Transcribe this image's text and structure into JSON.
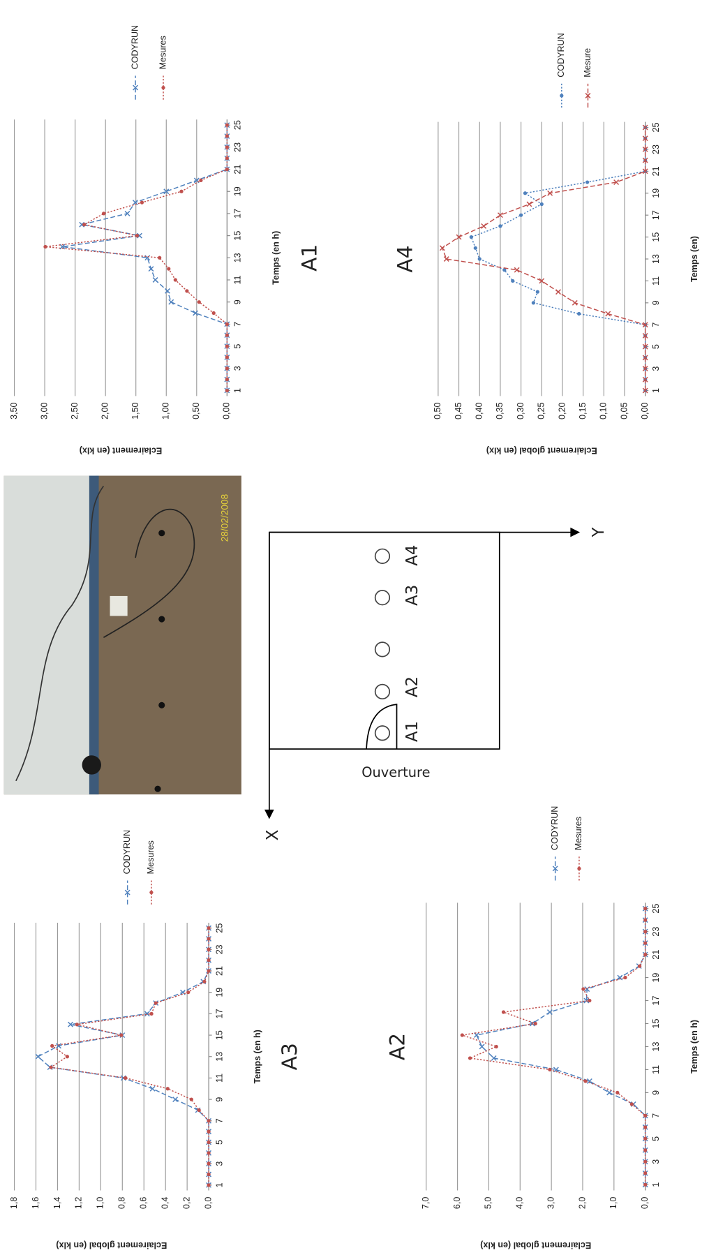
{
  "chart_data": [
    {
      "type": "line",
      "title": "A1",
      "xlabel": "Temps (en h)",
      "ylabel": "Eclairement (en klx)",
      "x": [
        1,
        2,
        3,
        4,
        5,
        6,
        7,
        8,
        9,
        10,
        11,
        12,
        13,
        14,
        15,
        16,
        17,
        18,
        19,
        20,
        21,
        22,
        23,
        24,
        25
      ],
      "series": [
        {
          "name": "CODYRUN",
          "color": "#4f81bd",
          "dash": "dashed",
          "marker": "x",
          "values": [
            0,
            0,
            0,
            0,
            0,
            0,
            0,
            0.52,
            0.92,
            0.98,
            1.18,
            1.25,
            1.31,
            2.71,
            1.44,
            2.39,
            1.64,
            1.51,
            1.0,
            0.5,
            0,
            0,
            0,
            0,
            0
          ]
        },
        {
          "name": "Mesures",
          "color": "#c0504d",
          "dash": "dotted",
          "marker": "circle",
          "values": [
            0,
            0,
            0,
            0,
            0,
            0,
            0,
            0.22,
            0.46,
            0.66,
            0.85,
            0.96,
            1.11,
            2.99,
            1.48,
            2.35,
            2.03,
            1.4,
            0.75,
            0.43,
            0,
            0,
            0,
            0,
            0
          ]
        }
      ],
      "xlim": [
        0.5,
        25.5
      ],
      "xticks": [
        1,
        3,
        5,
        7,
        9,
        11,
        13,
        15,
        17,
        19,
        21,
        23,
        25
      ],
      "ylim": [
        0,
        3.5
      ],
      "yticks": [
        {
          "value": 0,
          "label": "0,00"
        },
        {
          "value": 0.5,
          "label": "0,50"
        },
        {
          "value": 1,
          "label": "1,00"
        },
        {
          "value": 1.5,
          "label": "1,50"
        },
        {
          "value": 2,
          "label": "2,00"
        },
        {
          "value": 2.5,
          "label": "2,50"
        },
        {
          "value": 3,
          "label": "3,00"
        },
        {
          "value": 3.5,
          "label": "3,50"
        }
      ],
      "grid": true
    },
    {
      "type": "line",
      "title": "A4",
      "xlabel": "Temps (en)",
      "ylabel": "Eclairement global (en klx)",
      "x": [
        1,
        2,
        3,
        4,
        5,
        6,
        7,
        8,
        9,
        10,
        11,
        12,
        13,
        14,
        15,
        16,
        17,
        18,
        19,
        20,
        21,
        22,
        23,
        24,
        25
      ],
      "series": [
        {
          "name": "CODYRUN",
          "color": "#4f81bd",
          "dash": "dotted",
          "marker": "circle",
          "values": [
            0,
            0,
            0,
            0,
            0,
            0,
            0,
            0.16,
            0.27,
            0.26,
            0.32,
            0.34,
            0.4,
            0.41,
            0.42,
            0.35,
            0.3,
            0.25,
            0.29,
            0.14,
            0,
            0,
            0,
            0,
            0
          ]
        },
        {
          "name": "Mesure",
          "color": "#c0504d",
          "dash": "dashed",
          "marker": "x",
          "values": [
            0,
            0,
            0,
            0,
            0,
            0,
            0,
            0.09,
            0.17,
            0.21,
            0.25,
            0.31,
            0.48,
            0.49,
            0.45,
            0.39,
            0.35,
            0.28,
            0.23,
            0.07,
            0,
            0,
            0,
            0,
            0
          ]
        }
      ],
      "xlim": [
        0.5,
        25.5
      ],
      "xticks": [
        1,
        3,
        5,
        7,
        9,
        11,
        13,
        15,
        17,
        19,
        21,
        23,
        25
      ],
      "ylim": [
        0,
        0.5
      ],
      "yticks": [
        {
          "value": 0,
          "label": "0,00"
        },
        {
          "value": 0.05,
          "label": "0,05"
        },
        {
          "value": 0.1,
          "label": "0,10"
        },
        {
          "value": 0.15,
          "label": "0,15"
        },
        {
          "value": 0.2,
          "label": "0,20"
        },
        {
          "value": 0.25,
          "label": "0,25"
        },
        {
          "value": 0.3,
          "label": "0,30"
        },
        {
          "value": 0.35,
          "label": "0,35"
        },
        {
          "value": 0.4,
          "label": "0,40"
        },
        {
          "value": 0.45,
          "label": "0,45"
        },
        {
          "value": 0.5,
          "label": "0,50"
        }
      ],
      "grid": true
    },
    {
      "type": "line",
      "title": "A3",
      "xlabel": "Temps (en h)",
      "ylabel": "Eclairement global (en klx)",
      "x": [
        1,
        2,
        3,
        4,
        5,
        6,
        7,
        8,
        9,
        10,
        11,
        12,
        13,
        14,
        15,
        16,
        17,
        18,
        19,
        20,
        21,
        22,
        23,
        24,
        25
      ],
      "series": [
        {
          "name": "CODYRUN",
          "color": "#4f81bd",
          "dash": "dashed",
          "marker": "x",
          "values": [
            0,
            0,
            0,
            0,
            0,
            0,
            0,
            0.1,
            0.31,
            0.52,
            0.79,
            1.47,
            1.58,
            1.39,
            0.8,
            1.28,
            0.57,
            0.49,
            0.24,
            0.05,
            0,
            0,
            0,
            0,
            0
          ]
        },
        {
          "name": "Mesures",
          "color": "#c0504d",
          "dash": "dotted",
          "marker": "circle",
          "values": [
            0,
            0,
            0,
            0,
            0,
            0,
            0,
            0.09,
            0.16,
            0.38,
            0.77,
            1.46,
            1.31,
            1.45,
            0.81,
            1.22,
            0.53,
            0.49,
            0.19,
            0.04,
            0,
            0,
            0,
            0,
            0
          ]
        }
      ],
      "xlim": [
        0.5,
        25.5
      ],
      "xticks": [
        1,
        3,
        5,
        7,
        9,
        11,
        13,
        15,
        17,
        19,
        21,
        23,
        25
      ],
      "ylim": [
        0,
        1.8
      ],
      "yticks": [
        {
          "value": 0,
          "label": "0,0"
        },
        {
          "value": 0.2,
          "label": "0,2"
        },
        {
          "value": 0.4,
          "label": "0,4"
        },
        {
          "value": 0.6,
          "label": "0,6"
        },
        {
          "value": 0.8,
          "label": "0,8"
        },
        {
          "value": 1,
          "label": "1,0"
        },
        {
          "value": 1.2,
          "label": "1,2"
        },
        {
          "value": 1.4,
          "label": "1,4"
        },
        {
          "value": 1.6,
          "label": "1,6"
        },
        {
          "value": 1.8,
          "label": "1,8"
        }
      ],
      "grid": true
    },
    {
      "type": "line",
      "title": "A2",
      "xlabel": "Temps (en h)",
      "ylabel": "Eclairement global (en klx)",
      "x": [
        1,
        2,
        3,
        4,
        5,
        6,
        7,
        8,
        9,
        10,
        11,
        12,
        13,
        14,
        15,
        16,
        17,
        18,
        19,
        20,
        21,
        22,
        23,
        24,
        25
      ],
      "series": [
        {
          "name": "CODYRUN",
          "color": "#4f81bd",
          "dash": "dashed",
          "marker": "x",
          "values": [
            0,
            0,
            0,
            0,
            0,
            0,
            0,
            0.38,
            1.15,
            1.78,
            2.85,
            4.84,
            5.22,
            5.39,
            3.61,
            3.05,
            1.88,
            1.86,
            0.81,
            0.2,
            0,
            0,
            0,
            0,
            0
          ]
        },
        {
          "name": "Mesures",
          "color": "#c0504d",
          "dash": "dotted",
          "marker": "circle",
          "values": [
            0,
            0,
            0,
            0,
            0,
            0,
            0,
            0.43,
            0.89,
            1.91,
            3.05,
            5.6,
            4.76,
            5.85,
            3.51,
            4.53,
            1.78,
            1.98,
            0.64,
            0.18,
            0,
            0,
            0,
            0,
            0
          ]
        }
      ],
      "xlim": [
        0.5,
        25.5
      ],
      "xticks": [
        1,
        3,
        5,
        7,
        9,
        11,
        13,
        15,
        17,
        19,
        21,
        23,
        25
      ],
      "ylim": [
        0,
        7
      ],
      "yticks": [
        {
          "value": 0,
          "label": "0,0"
        },
        {
          "value": 1,
          "label": "1,0"
        },
        {
          "value": 2,
          "label": "2,0"
        },
        {
          "value": 3,
          "label": "3,0"
        },
        {
          "value": 4,
          "label": "4,0"
        },
        {
          "value": 5,
          "label": "5,0"
        },
        {
          "value": 6,
          "label": "6,0"
        },
        {
          "value": 7,
          "label": "7,0"
        }
      ],
      "grid": true
    }
  ],
  "photo": {
    "date": "28/02/2008"
  },
  "diagram": {
    "opening": "Ouverture",
    "x_axis": "X",
    "y_axis": "Y",
    "points": [
      "A1",
      "A2",
      "A3",
      "A4"
    ]
  }
}
